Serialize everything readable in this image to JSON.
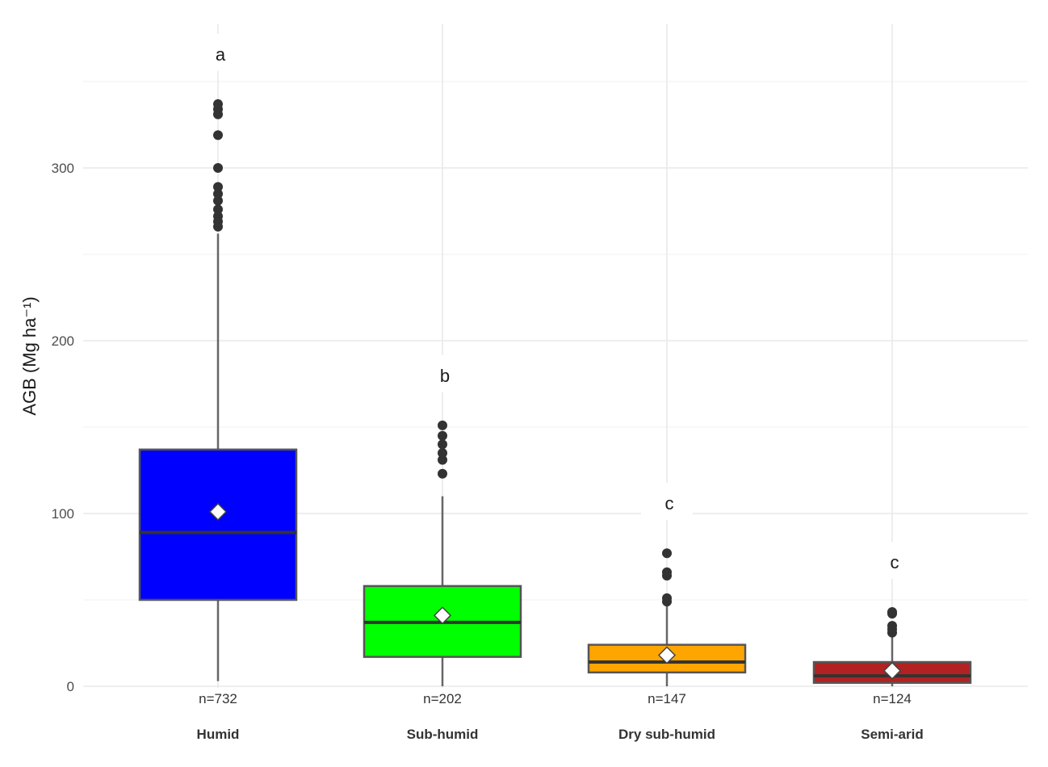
{
  "chart_data": {
    "type": "box",
    "ylabel": "AGB (Mg ha⁻¹)",
    "ylim": [
      0,
      350
    ],
    "yticks": [
      0,
      100,
      200,
      300
    ],
    "grid": true,
    "categories": [
      "Humid",
      "Sub-humid",
      "Dry sub-humid",
      "Semi-arid"
    ],
    "series": [
      {
        "category": "Humid",
        "color": "#0000ff",
        "q1": 50,
        "median": 89,
        "q3": 137,
        "whisker_low": 3,
        "whisker_high": 262,
        "mean": 101,
        "outliers": [
          266,
          269,
          272,
          276,
          281,
          285,
          289,
          300,
          319,
          331,
          334,
          337
        ],
        "n_label": "n=732",
        "letter": "a"
      },
      {
        "category": "Sub-humid",
        "color": "#00ff00",
        "q1": 17,
        "median": 37,
        "q3": 58,
        "whisker_low": 0,
        "whisker_high": 110,
        "mean": 41,
        "outliers": [
          123,
          131,
          135,
          140,
          145,
          151
        ],
        "n_label": "n=202",
        "letter": "b"
      },
      {
        "category": "Dry sub-humid",
        "color": "#ffa500",
        "q1": 8,
        "median": 14,
        "q3": 24,
        "whisker_low": 0,
        "whisker_high": 47,
        "mean": 18,
        "outliers": [
          49,
          51,
          64,
          66,
          77
        ],
        "n_label": "n=147",
        "letter": "c"
      },
      {
        "category": "Semi-arid",
        "color": "#b22222",
        "q1": 2,
        "median": 6,
        "q3": 14,
        "whisker_low": 0,
        "whisker_high": 30,
        "mean": 9,
        "outliers": [
          31,
          33,
          35,
          42,
          43
        ],
        "n_label": "n=124",
        "letter": "c"
      }
    ]
  }
}
